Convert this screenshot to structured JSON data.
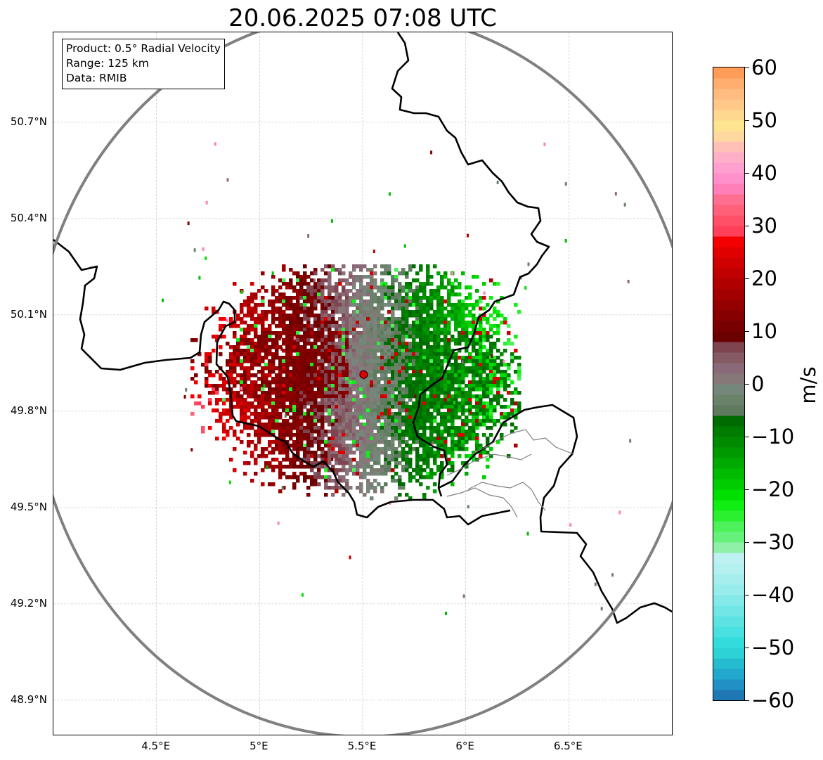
{
  "title": "20.06.2025 07:08 UTC",
  "info_box": {
    "product": "Product: 0.5° Radial Velocity",
    "range": "Range: 125 km",
    "data": "Data: RMIB"
  },
  "map": {
    "lon_range": [
      4.0,
      7.0
    ],
    "lat_range": [
      48.8,
      50.98
    ],
    "lon_ticks": [
      4.5,
      5.0,
      5.5,
      6.0,
      6.5
    ],
    "lon_tick_labels": [
      "4.5°E",
      "5°E",
      "5.5°E",
      "6°E",
      "6.5°E"
    ],
    "lat_ticks": [
      48.9,
      49.2,
      49.5,
      49.8,
      50.1,
      50.4,
      50.7
    ],
    "lat_tick_labels": [
      "48.9°N",
      "49.2°N",
      "49.5°N",
      "49.8°N",
      "50.1°N",
      "50.4°N",
      "50.7°N"
    ],
    "gridlines": true,
    "radar_site": {
      "lon": 5.505,
      "lat": 49.914
    },
    "range_ring_km": 125,
    "colors": {
      "range_ring": "#808080",
      "border": "#000000",
      "admin_border": "#808080",
      "radar_marker": "#e00000"
    }
  },
  "colorbar": {
    "unit": "m/s",
    "min": -60,
    "max": 60,
    "ticks": [
      60,
      50,
      40,
      30,
      20,
      10,
      0,
      -10,
      -20,
      -30,
      -40,
      -50,
      -60
    ],
    "tick_labels": [
      "60",
      "50",
      "40",
      "30",
      "20",
      "10",
      "0",
      "−10",
      "−20",
      "−30",
      "−40",
      "−50",
      "−60"
    ],
    "bands": [
      {
        "from": -60,
        "to": -58,
        "color": "#1f77b4"
      },
      {
        "from": -58,
        "to": -56,
        "color": "#2190c4"
      },
      {
        "from": -56,
        "to": -54,
        "color": "#22a8cc"
      },
      {
        "from": -54,
        "to": -52,
        "color": "#26bcd0"
      },
      {
        "from": -52,
        "to": -50,
        "color": "#2dd2d6"
      },
      {
        "from": -50,
        "to": -48,
        "color": "#33dcdc"
      },
      {
        "from": -48,
        "to": -46,
        "color": "#48e0e0"
      },
      {
        "from": -46,
        "to": -44,
        "color": "#5ee3e3"
      },
      {
        "from": -44,
        "to": -42,
        "color": "#72e6e6"
      },
      {
        "from": -42,
        "to": -40,
        "color": "#86e9e9"
      },
      {
        "from": -40,
        "to": -38,
        "color": "#98ecec"
      },
      {
        "from": -38,
        "to": -36,
        "color": "#a6eeee"
      },
      {
        "from": -36,
        "to": -34,
        "color": "#b4f0f0"
      },
      {
        "from": -34,
        "to": -32,
        "color": "#bef2f2"
      },
      {
        "from": -32,
        "to": -30,
        "color": "#90f0a8"
      },
      {
        "from": -30,
        "to": -28,
        "color": "#66f27a"
      },
      {
        "from": -28,
        "to": -26,
        "color": "#4df25a"
      },
      {
        "from": -26,
        "to": -24,
        "color": "#2af030"
      },
      {
        "from": -24,
        "to": -22,
        "color": "#10ee14"
      },
      {
        "from": -22,
        "to": -20,
        "color": "#00e000"
      },
      {
        "from": -20,
        "to": -18,
        "color": "#00cc00"
      },
      {
        "from": -18,
        "to": -16,
        "color": "#00bb00"
      },
      {
        "from": -16,
        "to": -14,
        "color": "#00aa00"
      },
      {
        "from": -14,
        "to": -12,
        "color": "#009900"
      },
      {
        "from": -12,
        "to": -10,
        "color": "#008a00"
      },
      {
        "from": -10,
        "to": -8,
        "color": "#007c00"
      },
      {
        "from": -8,
        "to": -6,
        "color": "#006b00"
      },
      {
        "from": -6,
        "to": -4,
        "color": "#5f7a5f"
      },
      {
        "from": -4,
        "to": -2,
        "color": "#6a826a"
      },
      {
        "from": -2,
        "to": 0,
        "color": "#75867a"
      },
      {
        "from": 0,
        "to": 2,
        "color": "#867878"
      },
      {
        "from": 2,
        "to": 4,
        "color": "#8a6a78"
      },
      {
        "from": 4,
        "to": 6,
        "color": "#865a64"
      },
      {
        "from": 6,
        "to": 8,
        "color": "#7e4450"
      },
      {
        "from": 8,
        "to": 10,
        "color": "#6a0000"
      },
      {
        "from": 10,
        "to": 12,
        "color": "#780000"
      },
      {
        "from": 12,
        "to": 14,
        "color": "#860000"
      },
      {
        "from": 14,
        "to": 16,
        "color": "#940000"
      },
      {
        "from": 16,
        "to": 18,
        "color": "#a20000"
      },
      {
        "from": 18,
        "to": 20,
        "color": "#b00000"
      },
      {
        "from": 20,
        "to": 22,
        "color": "#c00000"
      },
      {
        "from": 22,
        "to": 24,
        "color": "#d00000"
      },
      {
        "from": 24,
        "to": 26,
        "color": "#e00000"
      },
      {
        "from": 26,
        "to": 28,
        "color": "#f50000"
      },
      {
        "from": 28,
        "to": 30,
        "color": "#ff4058"
      },
      {
        "from": 30,
        "to": 32,
        "color": "#ff5068"
      },
      {
        "from": 32,
        "to": 34,
        "color": "#ff607a"
      },
      {
        "from": 34,
        "to": 36,
        "color": "#ff7090"
      },
      {
        "from": 36,
        "to": 38,
        "color": "#ff80b8"
      },
      {
        "from": 38,
        "to": 40,
        "color": "#ff90cc"
      },
      {
        "from": 40,
        "to": 42,
        "color": "#ffa0d0"
      },
      {
        "from": 42,
        "to": 44,
        "color": "#ffb0c8"
      },
      {
        "from": 44,
        "to": 46,
        "color": "#ffc0b8"
      },
      {
        "from": 46,
        "to": 48,
        "color": "#ffd8a0"
      },
      {
        "from": 48,
        "to": 50,
        "color": "#ffe490"
      },
      {
        "from": 50,
        "to": 52,
        "color": "#ffd890"
      },
      {
        "from": 52,
        "to": 54,
        "color": "#ffc888"
      },
      {
        "from": 54,
        "to": 56,
        "color": "#ffbc80"
      },
      {
        "from": 56,
        "to": 58,
        "color": "#ffae70"
      },
      {
        "from": 58,
        "to": 60,
        "color": "#ff9c58"
      }
    ]
  }
}
